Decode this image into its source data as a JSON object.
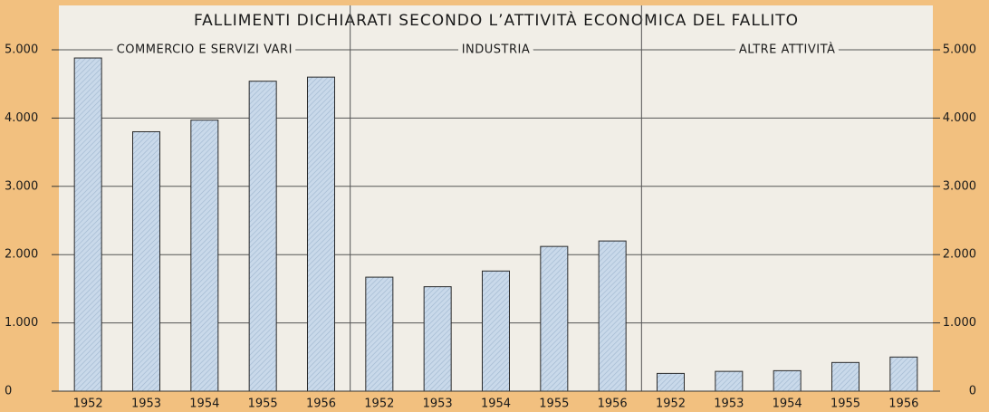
{
  "chart_data": {
    "type": "bar",
    "title": "FALLIMENTI DICHIARATI SECONDO L’ATTIVITÀ ECONOMICA DEL FALLITO",
    "groups": [
      {
        "label": "COMMERCIO E SERVIZI VARI",
        "categories": [
          "1952",
          "1953",
          "1954",
          "1955",
          "1956"
        ],
        "values": [
          4880,
          3800,
          3970,
          4540,
          4600
        ]
      },
      {
        "label": "INDUSTRIA",
        "categories": [
          "1952",
          "1953",
          "1954",
          "1955",
          "1956"
        ],
        "values": [
          1670,
          1530,
          1760,
          2120,
          2200
        ]
      },
      {
        "label": "ALTRE ATTIVITÀ",
        "categories": [
          "1952",
          "1953",
          "1954",
          "1955",
          "1956"
        ],
        "values": [
          260,
          290,
          300,
          420,
          500
        ]
      }
    ],
    "color": "#c9d9ea",
    "ylim": [
      0,
      5000
    ],
    "yticks": [
      0,
      {
        "value": 1000,
        "label": "1.000"
      },
      {
        "value": 2000,
        "label": "2.000"
      },
      {
        "value": 3000,
        "label": "3.000"
      },
      {
        "value": 4000,
        "label": "4.000"
      },
      {
        "value": 5000,
        "label": "5.000"
      }
    ],
    "y2lim": [
      0,
      5000
    ],
    "y2ticks": [
      0,
      {
        "value": 1000,
        "label": "1.000"
      },
      {
        "value": 2000,
        "label": "2.000"
      },
      {
        "value": 3000,
        "label": "3.000"
      },
      {
        "value": 4000,
        "label": "4.000"
      },
      {
        "value": 5000,
        "label": "5.000"
      }
    ],
    "grid": true
  }
}
